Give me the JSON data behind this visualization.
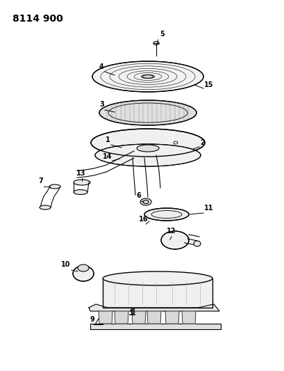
{
  "title": "8114 900",
  "bg_color": "#ffffff",
  "line_color": "#000000"
}
